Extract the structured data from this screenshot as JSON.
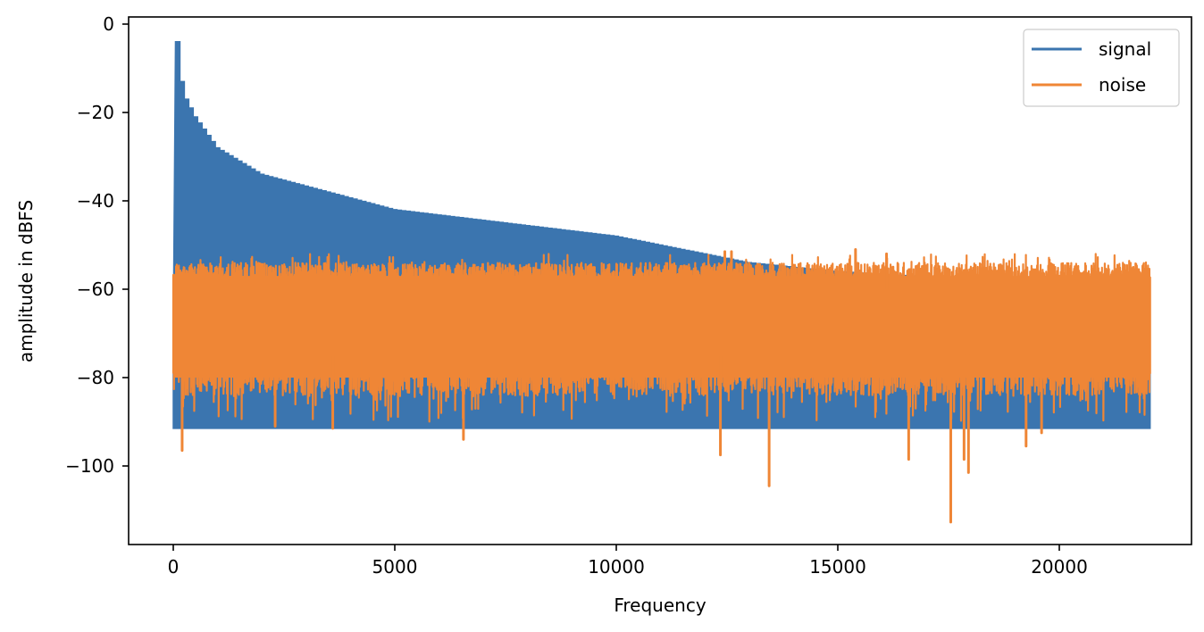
{
  "chart_data": {
    "type": "line",
    "title": "",
    "xlabel": "Frequency",
    "ylabel": "amplitude in dBFS",
    "xlim": [
      -1100,
      23200
    ],
    "ylim": [
      -118,
      1.7
    ],
    "xticks": [
      0,
      5000,
      10000,
      15000,
      20000
    ],
    "xtick_labels": [
      "0",
      "5000",
      "10000",
      "15000",
      "20000"
    ],
    "yticks": [
      0,
      -20,
      -40,
      -60,
      -80,
      -100
    ],
    "ytick_labels": [
      "0",
      "−20",
      "−40",
      "−60",
      "−80",
      "−100"
    ],
    "grid": false,
    "legend_position": "upper right",
    "series": [
      {
        "name": "signal",
        "color": "#3b75af",
        "description": "sawtooth harmonic spectrum: peaks decay ~1/n from -4 dBFS, floor at about -91.5 dBFS",
        "fundamental_hz": 100,
        "first_peak_db": -4,
        "floor_db": -91.5,
        "x_end": 22050,
        "envelope_points": [
          {
            "x": 100,
            "y": -4
          },
          {
            "x": 200,
            "y": -13
          },
          {
            "x": 300,
            "y": -17
          },
          {
            "x": 500,
            "y": -21
          },
          {
            "x": 1000,
            "y": -28
          },
          {
            "x": 2000,
            "y": -34
          },
          {
            "x": 5000,
            "y": -42
          },
          {
            "x": 10000,
            "y": -48
          },
          {
            "x": 13000,
            "y": -54
          },
          {
            "x": 15000,
            "y": -56
          },
          {
            "x": 20000,
            "y": -59
          },
          {
            "x": 22050,
            "y": -60
          }
        ]
      },
      {
        "name": "noise",
        "color": "#ef8636",
        "description": "white noise spectrum, mostly between -85 and -53 dBFS",
        "band_top_db": -54,
        "band_bottom_db": -84,
        "x_end": 22050,
        "notable_peaks": [
          {
            "x": 12450,
            "y": -51.5
          },
          {
            "x": 12600,
            "y": -51.5
          },
          {
            "x": 15400,
            "y": -51
          },
          {
            "x": 16100,
            "y": -52
          }
        ],
        "notable_dips": [
          {
            "x": 200,
            "y": -96.5
          },
          {
            "x": 2300,
            "y": -91
          },
          {
            "x": 3600,
            "y": -91.5
          },
          {
            "x": 6550,
            "y": -94
          },
          {
            "x": 12350,
            "y": -97.5
          },
          {
            "x": 13450,
            "y": -104.5
          },
          {
            "x": 16600,
            "y": -98.5
          },
          {
            "x": 17550,
            "y": -112.7
          },
          {
            "x": 17850,
            "y": -98.5
          },
          {
            "x": 17950,
            "y": -101.5
          },
          {
            "x": 19250,
            "y": -95.5
          },
          {
            "x": 19600,
            "y": -92.5
          }
        ]
      }
    ]
  },
  "legend": {
    "items": [
      {
        "label": "signal",
        "color": "#3b75af"
      },
      {
        "label": "noise",
        "color": "#ef8636"
      }
    ]
  },
  "axes": {
    "xlabel": "Frequency",
    "ylabel": "amplitude in dBFS"
  }
}
